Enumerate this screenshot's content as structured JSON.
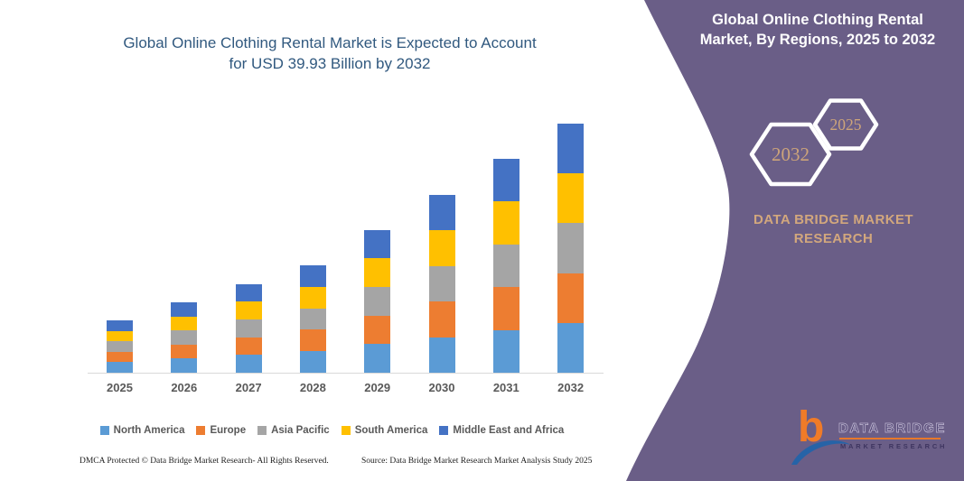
{
  "left": {
    "title_line1": "Global Online Clothing Rental Market is Expected to Account",
    "title_line2": "for USD 39.93 Billion by 2032",
    "footer_left": "DMCA Protected © Data Bridge Market Research-  All Rights Reserved.",
    "footer_right": "Source: Data Bridge Market Research  Market Analysis Study 2025"
  },
  "right_panel": {
    "bg_color": "#6A5E87",
    "accent_text_color": "#D2A77D",
    "title_line1": "Global Online Clothing Rental",
    "title_line2": "Market, By Regions, 2025 to 2032",
    "hexagons": [
      {
        "label": "2032"
      },
      {
        "label": "2025"
      }
    ],
    "brand_line1": "DATA BRIDGE MARKET",
    "brand_line2": "RESEARCH",
    "logo": {
      "letter": "b",
      "name_line1": "DATA BRIDGE",
      "name_line2": "MARKET RESEARCH"
    }
  },
  "chart_data": {
    "type": "bar",
    "stacked": true,
    "title": "Global Online Clothing Rental Market is Expected to Account for USD 39.93 Billion by 2032",
    "units": "USD Billion",
    "xlabel": "",
    "ylabel": "",
    "axis_visible": false,
    "grid": false,
    "legend_position": "bottom",
    "categories": [
      "2025",
      "2026",
      "2027",
      "2028",
      "2029",
      "2030",
      "2031",
      "2032"
    ],
    "totals": [
      8.4,
      11.3,
      14.2,
      17.2,
      22.9,
      28.5,
      34.3,
      39.93
    ],
    "series": [
      {
        "name": "North America",
        "color": "#5B9BD5",
        "values": [
          1.68,
          2.26,
          2.84,
          3.44,
          4.58,
          5.7,
          6.86,
          7.99
        ]
      },
      {
        "name": "Europe",
        "color": "#ED7D31",
        "values": [
          1.68,
          2.26,
          2.84,
          3.44,
          4.58,
          5.7,
          6.86,
          7.99
        ]
      },
      {
        "name": "Asia Pacific",
        "color": "#A5A5A5",
        "values": [
          1.68,
          2.26,
          2.84,
          3.44,
          4.58,
          5.7,
          6.86,
          7.99
        ]
      },
      {
        "name": "South America",
        "color": "#FFC000",
        "values": [
          1.68,
          2.26,
          2.84,
          3.44,
          4.58,
          5.7,
          6.86,
          7.99
        ]
      },
      {
        "name": "Middle East and Africa",
        "color": "#4472C4",
        "values": [
          1.68,
          2.26,
          2.84,
          3.44,
          4.58,
          5.7,
          6.86,
          7.99
        ]
      }
    ]
  }
}
